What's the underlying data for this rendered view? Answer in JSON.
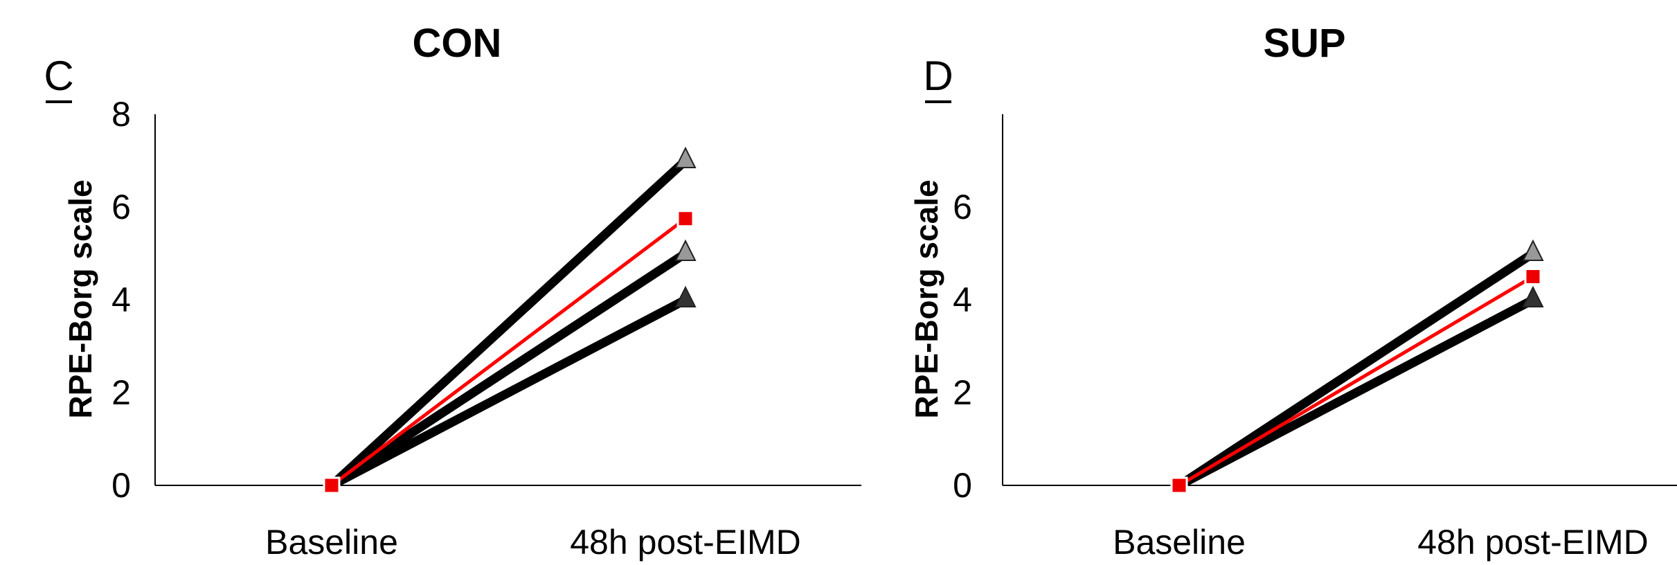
{
  "chart_data": [
    {
      "type": "line",
      "panel_letter": "C",
      "title": "CON",
      "xlabel": "",
      "ylabel": "RPE-Borg scale",
      "categories": [
        "Baseline",
        "48h post-EIMD"
      ],
      "yticks": [
        "0",
        "2",
        "4",
        "6",
        "8"
      ],
      "ylim": [
        0,
        8
      ],
      "grid": false,
      "legend": "none",
      "series": [
        {
          "values": [
            0,
            7
          ],
          "color": "#000000",
          "marker": "triangle",
          "marker_color": "#999999"
        },
        {
          "values": [
            0,
            5
          ],
          "color": "#000000",
          "marker": "triangle",
          "marker_color": "#999999"
        },
        {
          "values": [
            0,
            4
          ],
          "color": "#000000",
          "marker": "triangle",
          "marker_color": "#333333"
        },
        {
          "values": [
            0,
            5.75
          ],
          "color": "#ff0000",
          "marker": "square",
          "marker_color": "#ee0000"
        }
      ]
    },
    {
      "type": "line",
      "panel_letter": "D",
      "title": "SUP",
      "xlabel": "",
      "ylabel": "RPE-Borg scale",
      "categories": [
        "Baseline",
        "48h post-EIMD"
      ],
      "yticks": [
        "0",
        "2",
        "4",
        "6"
      ],
      "ylim": [
        0,
        8
      ],
      "grid": false,
      "legend": "none",
      "series": [
        {
          "values": [
            0,
            5
          ],
          "color": "#000000",
          "marker": "triangle",
          "marker_color": "#999999"
        },
        {
          "values": [
            0,
            4
          ],
          "color": "#000000",
          "marker": "triangle",
          "marker_color": "#333333"
        },
        {
          "values": [
            0,
            4.5
          ],
          "color": "#ff0000",
          "marker": "square",
          "marker_color": "#ee0000"
        }
      ]
    }
  ]
}
